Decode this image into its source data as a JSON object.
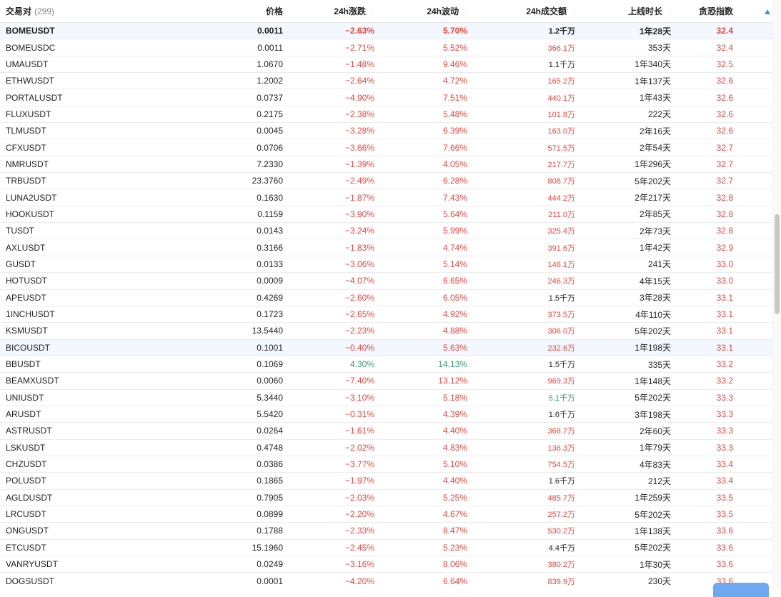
{
  "header": {
    "symbol": "交易对",
    "count": "(299)",
    "price": "价格",
    "change": "24h涨跌",
    "volatility": "24h波动",
    "amount": "24h成交额",
    "listed": "上线时长",
    "fear_greed": "贪恐指数"
  },
  "colors": {
    "red": "#e5463e",
    "green": "#2e9c6f",
    "accent": "#4a90e2"
  },
  "rows": [
    {
      "sym": "BOMEUSDT",
      "price": "0.0011",
      "chg": "−2.63%",
      "vol": "5.70%",
      "amt": "1.2千万",
      "age": "1年28天",
      "fear": "32.4",
      "chg_c": "red",
      "vol_c": "red",
      "amt_c": "dark",
      "bold": true,
      "hl": true
    },
    {
      "sym": "BOMEUSDC",
      "price": "0.0011",
      "chg": "−2.71%",
      "vol": "5.52%",
      "amt": "366.1万",
      "age": "353天",
      "fear": "32.4",
      "chg_c": "red",
      "vol_c": "red",
      "amt_c": "red"
    },
    {
      "sym": "UMAUSDT",
      "price": "1.0670",
      "chg": "−1.48%",
      "vol": "9.46%",
      "amt": "1.1千万",
      "age": "1年340天",
      "fear": "32.5",
      "chg_c": "red",
      "vol_c": "red",
      "amt_c": "dark"
    },
    {
      "sym": "ETHWUSDT",
      "price": "1.2002",
      "chg": "−2.64%",
      "vol": "4.72%",
      "amt": "165.2万",
      "age": "1年137天",
      "fear": "32.6",
      "chg_c": "red",
      "vol_c": "red",
      "amt_c": "red"
    },
    {
      "sym": "PORTALUSDT",
      "price": "0.0737",
      "chg": "−4.90%",
      "vol": "7.51%",
      "amt": "440.1万",
      "age": "1年43天",
      "fear": "32.6",
      "chg_c": "red",
      "vol_c": "red",
      "amt_c": "red"
    },
    {
      "sym": "FLUXUSDT",
      "price": "0.2175",
      "chg": "−2.38%",
      "vol": "5.48%",
      "amt": "101.8万",
      "age": "222天",
      "fear": "32.6",
      "chg_c": "red",
      "vol_c": "red",
      "amt_c": "red"
    },
    {
      "sym": "TLMUSDT",
      "price": "0.0045",
      "chg": "−3.28%",
      "vol": "6.39%",
      "amt": "163.0万",
      "age": "2年16天",
      "fear": "32.6",
      "chg_c": "red",
      "vol_c": "red",
      "amt_c": "red"
    },
    {
      "sym": "CFXUSDT",
      "price": "0.0706",
      "chg": "−3.66%",
      "vol": "7.66%",
      "amt": "571.5万",
      "age": "2年54天",
      "fear": "32.7",
      "chg_c": "red",
      "vol_c": "red",
      "amt_c": "red"
    },
    {
      "sym": "NMRUSDT",
      "price": "7.2330",
      "chg": "−1.39%",
      "vol": "4.05%",
      "amt": "217.7万",
      "age": "1年296天",
      "fear": "32.7",
      "chg_c": "red",
      "vol_c": "red",
      "amt_c": "red"
    },
    {
      "sym": "TRBUSDT",
      "price": "23.3760",
      "chg": "−2.49%",
      "vol": "6.28%",
      "amt": "808.7万",
      "age": "5年202天",
      "fear": "32.7",
      "chg_c": "red",
      "vol_c": "red",
      "amt_c": "red"
    },
    {
      "sym": "LUNA2USDT",
      "price": "0.1630",
      "chg": "−1.87%",
      "vol": "7.43%",
      "amt": "444.2万",
      "age": "2年217天",
      "fear": "32.8",
      "chg_c": "red",
      "vol_c": "red",
      "amt_c": "red"
    },
    {
      "sym": "HOOKUSDT",
      "price": "0.1159",
      "chg": "−3.90%",
      "vol": "5.64%",
      "amt": "211.0万",
      "age": "2年85天",
      "fear": "32.8",
      "chg_c": "red",
      "vol_c": "red",
      "amt_c": "red"
    },
    {
      "sym": "TUSDT",
      "price": "0.0143",
      "chg": "−3.24%",
      "vol": "5.99%",
      "amt": "325.4万",
      "age": "2年73天",
      "fear": "32.8",
      "chg_c": "red",
      "vol_c": "red",
      "amt_c": "red"
    },
    {
      "sym": "AXLUSDT",
      "price": "0.3166",
      "chg": "−1.83%",
      "vol": "4.74%",
      "amt": "391.6万",
      "age": "1年42天",
      "fear": "32.9",
      "chg_c": "red",
      "vol_c": "red",
      "amt_c": "red"
    },
    {
      "sym": "GUSDT",
      "price": "0.0133",
      "chg": "−3.06%",
      "vol": "5.14%",
      "amt": "146.1万",
      "age": "241天",
      "fear": "33.0",
      "chg_c": "red",
      "vol_c": "red",
      "amt_c": "red"
    },
    {
      "sym": "HOTUSDT",
      "price": "0.0009",
      "chg": "−4.07%",
      "vol": "6.65%",
      "amt": "246.3万",
      "age": "4年15天",
      "fear": "33.0",
      "chg_c": "red",
      "vol_c": "red",
      "amt_c": "red"
    },
    {
      "sym": "APEUSDT",
      "price": "0.4269",
      "chg": "−2.60%",
      "vol": "6.05%",
      "amt": "1.5千万",
      "age": "3年28天",
      "fear": "33.1",
      "chg_c": "red",
      "vol_c": "red",
      "amt_c": "dark"
    },
    {
      "sym": "1INCHUSDT",
      "price": "0.1723",
      "chg": "−2.65%",
      "vol": "4.92%",
      "amt": "373.5万",
      "age": "4年110天",
      "fear": "33.1",
      "chg_c": "red",
      "vol_c": "red",
      "amt_c": "red"
    },
    {
      "sym": "KSMUSDT",
      "price": "13.5440",
      "chg": "−2.23%",
      "vol": "4.88%",
      "amt": "306.0万",
      "age": "5年202天",
      "fear": "33.1",
      "chg_c": "red",
      "vol_c": "red",
      "amt_c": "red"
    },
    {
      "sym": "BICOUSDT",
      "price": "0.1001",
      "chg": "−0.40%",
      "vol": "5.63%",
      "amt": "232.6万",
      "age": "1年198天",
      "fear": "33.1",
      "chg_c": "red",
      "vol_c": "red",
      "amt_c": "red",
      "hl": true
    },
    {
      "sym": "BBUSDT",
      "price": "0.1069",
      "chg": "4.30%",
      "vol": "14.13%",
      "amt": "1.5千万",
      "age": "335天",
      "fear": "33.2",
      "chg_c": "green",
      "vol_c": "green",
      "amt_c": "dark"
    },
    {
      "sym": "BEAMXUSDT",
      "price": "0.0060",
      "chg": "−7.40%",
      "vol": "13.12%",
      "amt": "969.3万",
      "age": "1年148天",
      "fear": "33.2",
      "chg_c": "red",
      "vol_c": "red",
      "amt_c": "red"
    },
    {
      "sym": "UNIUSDT",
      "price": "5.3440",
      "chg": "−3.10%",
      "vol": "5.18%",
      "amt": "5.1千万",
      "age": "5年202天",
      "fear": "33.3",
      "chg_c": "red",
      "vol_c": "red",
      "amt_c": "green"
    },
    {
      "sym": "ARUSDT",
      "price": "5.5420",
      "chg": "−0.31%",
      "vol": "4.39%",
      "amt": "1.6千万",
      "age": "3年198天",
      "fear": "33.3",
      "chg_c": "red",
      "vol_c": "red",
      "amt_c": "dark"
    },
    {
      "sym": "ASTRUSDT",
      "price": "0.0264",
      "chg": "−1.61%",
      "vol": "4.40%",
      "amt": "368.7万",
      "age": "2年60天",
      "fear": "33.3",
      "chg_c": "red",
      "vol_c": "red",
      "amt_c": "red"
    },
    {
      "sym": "LSKUSDT",
      "price": "0.4748",
      "chg": "−2.02%",
      "vol": "4.83%",
      "amt": "136.3万",
      "age": "1年79天",
      "fear": "33.3",
      "chg_c": "red",
      "vol_c": "red",
      "amt_c": "red"
    },
    {
      "sym": "CHZUSDT",
      "price": "0.0386",
      "chg": "−3.77%",
      "vol": "5.10%",
      "amt": "754.5万",
      "age": "4年83天",
      "fear": "33.4",
      "chg_c": "red",
      "vol_c": "red",
      "amt_c": "red"
    },
    {
      "sym": "POLUSDT",
      "price": "0.1865",
      "chg": "−1.97%",
      "vol": "4.40%",
      "amt": "1.6千万",
      "age": "212天",
      "fear": "33.4",
      "chg_c": "red",
      "vol_c": "red",
      "amt_c": "dark"
    },
    {
      "sym": "AGLDUSDT",
      "price": "0.7905",
      "chg": "−2.03%",
      "vol": "5.25%",
      "amt": "485.7万",
      "age": "1年259天",
      "fear": "33.5",
      "chg_c": "red",
      "vol_c": "red",
      "amt_c": "red"
    },
    {
      "sym": "LRCUSDT",
      "price": "0.0899",
      "chg": "−2.20%",
      "vol": "4.67%",
      "amt": "257.2万",
      "age": "5年202天",
      "fear": "33.5",
      "chg_c": "red",
      "vol_c": "red",
      "amt_c": "red"
    },
    {
      "sym": "ONGUSDT",
      "price": "0.1788",
      "chg": "−2.33%",
      "vol": "8.47%",
      "amt": "530.2万",
      "age": "1年138天",
      "fear": "33.6",
      "chg_c": "red",
      "vol_c": "red",
      "amt_c": "red"
    },
    {
      "sym": "ETCUSDT",
      "price": "15.1960",
      "chg": "−2.45%",
      "vol": "5.23%",
      "amt": "4.4千万",
      "age": "5年202天",
      "fear": "33.6",
      "chg_c": "red",
      "vol_c": "red",
      "amt_c": "dark"
    },
    {
      "sym": "VANRYUSDT",
      "price": "0.0249",
      "chg": "−3.16%",
      "vol": "8.06%",
      "amt": "380.2万",
      "age": "1年30天",
      "fear": "33.6",
      "chg_c": "red",
      "vol_c": "red",
      "amt_c": "red"
    },
    {
      "sym": "DOGSUSDT",
      "price": "0.0001",
      "chg": "−4.20%",
      "vol": "6.64%",
      "amt": "839.9万",
      "age": "230天",
      "fear": "33.6",
      "chg_c": "red",
      "vol_c": "red",
      "amt_c": "red"
    }
  ]
}
